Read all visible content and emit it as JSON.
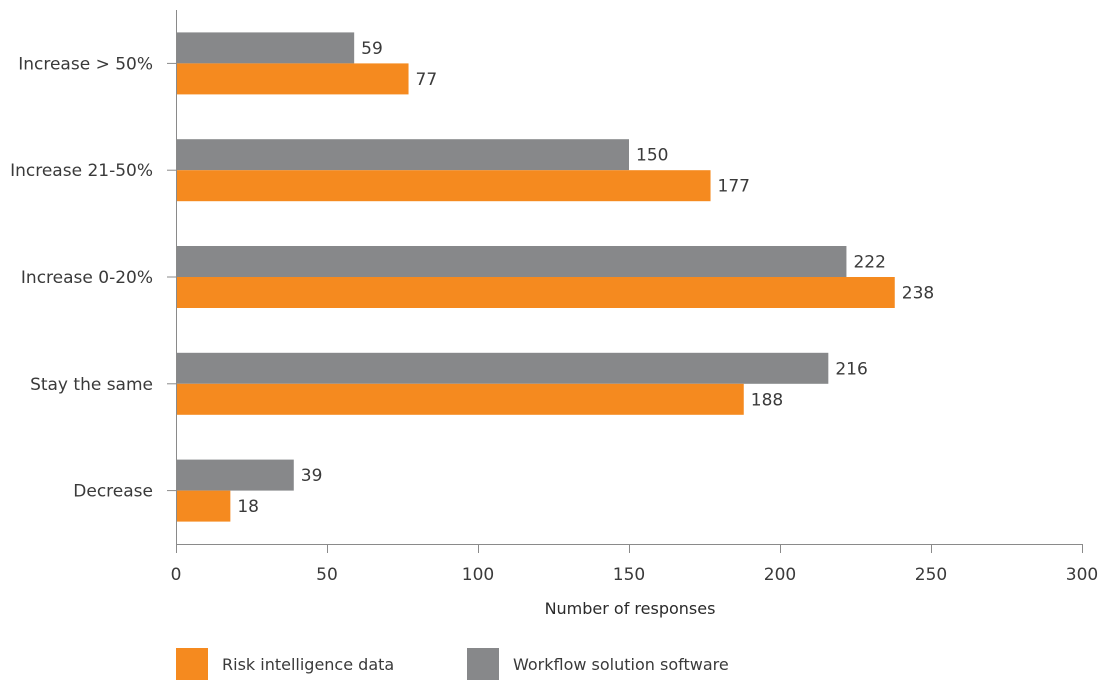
{
  "chart_data": {
    "type": "bar",
    "orientation": "horizontal",
    "categories": [
      "Increase > 50%",
      "Increase 21-50%",
      "Increase 0-20%",
      "Stay the same",
      "Decrease"
    ],
    "series": [
      {
        "name": "Workflow solution software",
        "color": "#87888a",
        "values": [
          59,
          150,
          222,
          216,
          39
        ]
      },
      {
        "name": "Risk intelligence data",
        "color": "#f58a1f",
        "values": [
          77,
          177,
          238,
          188,
          18
        ]
      }
    ],
    "xlabel": "Number of responses",
    "ylabel": "",
    "xlim": [
      0,
      300
    ],
    "xticks": [
      0,
      50,
      100,
      150,
      200,
      250,
      300
    ],
    "grid": false,
    "legend": {
      "position": "bottom-left",
      "entries": [
        {
          "label": "Risk intelligence data",
          "color": "#f58a1f"
        },
        {
          "label": "Workflow solution software",
          "color": "#87888a"
        }
      ]
    }
  }
}
